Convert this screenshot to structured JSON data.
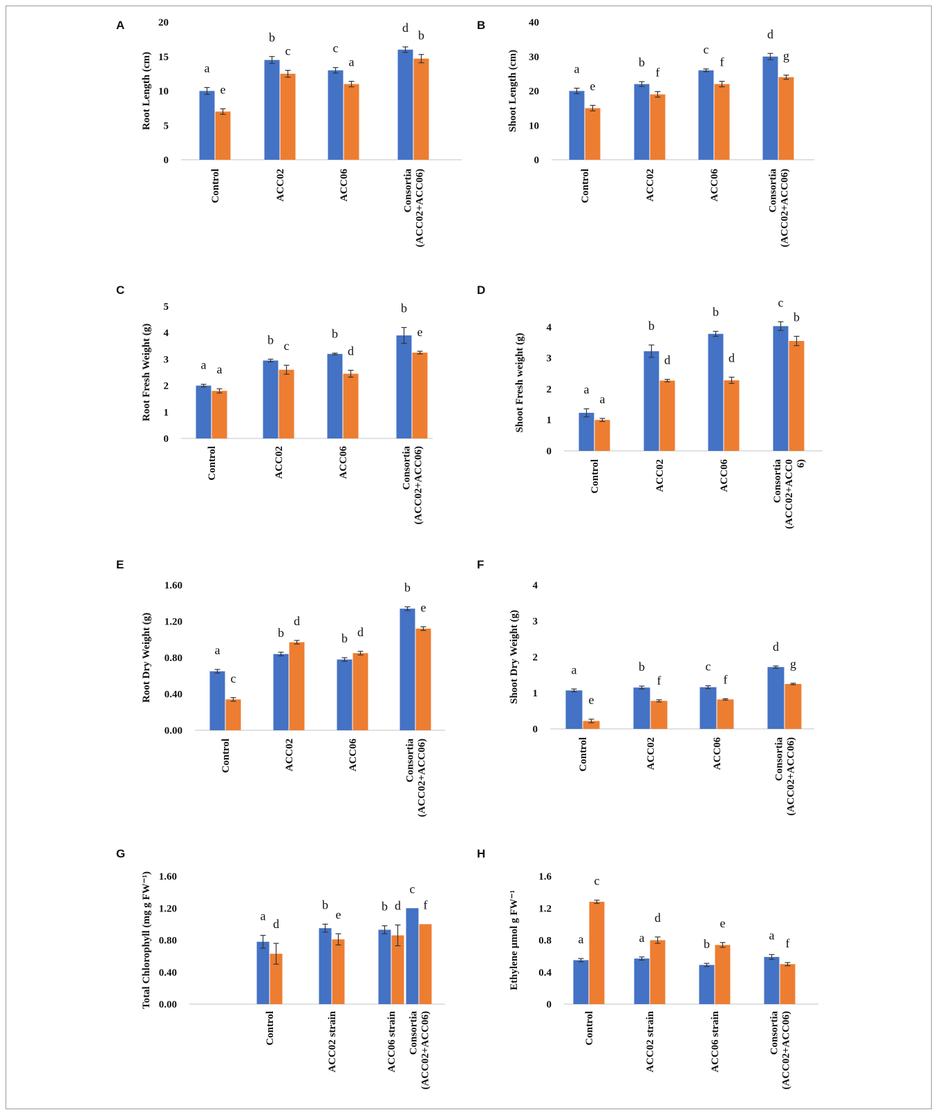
{
  "colors": {
    "series1": "#4472C4",
    "series2": "#ED7D31",
    "axis": "#cfcfcf"
  },
  "chart_data": [
    {
      "panel": "A",
      "type": "bar",
      "categories": [
        "Control",
        "ACC02",
        "ACC06",
        "Consortia\n(ACC02+ACC06)"
      ],
      "ylabel": "Root Length (cm)",
      "ylim": [
        0,
        20
      ],
      "yticks": [
        "0",
        "5",
        "10",
        "15",
        "20"
      ],
      "series": [
        {
          "values": [
            10,
            14.5,
            13,
            16
          ],
          "errors": [
            0.5,
            0.5,
            0.4,
            0.4
          ],
          "letters": [
            "a",
            "b",
            "c",
            "d"
          ]
        },
        {
          "values": [
            7,
            12.5,
            11,
            14.7
          ],
          "errors": [
            0.4,
            0.5,
            0.4,
            0.6
          ],
          "letters": [
            "e",
            "c",
            "a",
            "b"
          ]
        }
      ]
    },
    {
      "panel": "B",
      "type": "bar",
      "categories": [
        "Control",
        "ACC02",
        "ACC06",
        "Consortia\n(ACC02+ACC06)"
      ],
      "ylabel": "Shoot Length (cm)",
      "ylim": [
        0,
        40
      ],
      "yticks": [
        "0",
        "10",
        "20",
        "30",
        "40"
      ],
      "series": [
        {
          "values": [
            20,
            22,
            26,
            30
          ],
          "errors": [
            0.8,
            0.7,
            0.4,
            0.9
          ],
          "letters": [
            "a",
            "b",
            "c",
            "d"
          ]
        },
        {
          "values": [
            15,
            19,
            22,
            24
          ],
          "errors": [
            0.8,
            0.8,
            0.8,
            0.6
          ],
          "letters": [
            "e",
            "f",
            "f",
            "g"
          ]
        }
      ]
    },
    {
      "panel": "C",
      "type": "bar",
      "categories": [
        "Control",
        "ACC02",
        "ACC06",
        "Consortia\n(ACC02+ACC06)"
      ],
      "ylabel": "Root  Fresh Weight (g)",
      "ylim": [
        0,
        5
      ],
      "yticks": [
        "0",
        "1",
        "2",
        "3",
        "4",
        "5"
      ],
      "series": [
        {
          "values": [
            2.0,
            2.95,
            3.2,
            3.9
          ],
          "errors": [
            0.05,
            0.05,
            0.03,
            0.3
          ],
          "letters": [
            "a",
            "b",
            "b",
            "b"
          ]
        },
        {
          "values": [
            1.8,
            2.6,
            2.45,
            3.25
          ],
          "errors": [
            0.08,
            0.17,
            0.13,
            0.05
          ],
          "letters": [
            "a",
            "c",
            "d",
            "e"
          ]
        }
      ]
    },
    {
      "panel": "D",
      "type": "bar",
      "categories": [
        "Control",
        "ACC02",
        "ACC06",
        "Consortia\n(ACC02+ACC0\n6)"
      ],
      "ylabel": "Shoot Fresh weight (g)",
      "ylim": [
        0,
        4
      ],
      "ymax": 4.4,
      "yticks": [
        "0",
        "1",
        "2",
        "3",
        "4"
      ],
      "series": [
        {
          "values": [
            1.23,
            3.22,
            3.78,
            4.03
          ],
          "errors": [
            0.13,
            0.2,
            0.08,
            0.14
          ],
          "letters": [
            "a",
            "b",
            "b",
            "c"
          ]
        },
        {
          "values": [
            1.0,
            2.27,
            2.28,
            3.55
          ],
          "errors": [
            0.05,
            0.04,
            0.1,
            0.15
          ],
          "letters": [
            "a",
            "d",
            "d",
            "b"
          ]
        }
      ]
    },
    {
      "panel": "E",
      "type": "bar",
      "categories": [
        "Control",
        "ACC02",
        "ACC06",
        "Consortia\n(ACC02+ACC06)"
      ],
      "ylabel": "Root Dry Weight (g)",
      "ylim": [
        0,
        1.6
      ],
      "yticks": [
        "0.00",
        "0.40",
        "0.80",
        "1.20",
        "1.60"
      ],
      "series": [
        {
          "values": [
            0.65,
            0.84,
            0.78,
            1.34
          ],
          "errors": [
            0.02,
            0.02,
            0.02,
            0.02
          ],
          "letters": [
            "a",
            "b",
            "b",
            "b"
          ]
        },
        {
          "values": [
            0.34,
            0.97,
            0.85,
            1.12
          ],
          "errors": [
            0.02,
            0.02,
            0.02,
            0.02
          ],
          "letters": [
            "c",
            "d",
            "d",
            "e"
          ]
        }
      ]
    },
    {
      "panel": "F",
      "type": "bar",
      "categories": [
        "Control",
        "ACC02",
        "ACC06",
        "Consortia\n(ACC02+ACC06)"
      ],
      "ylabel": "Shoot Dry Weight (g)",
      "ylim": [
        0,
        4
      ],
      "yticks": [
        "0",
        "1",
        "2",
        "3",
        "4"
      ],
      "series": [
        {
          "values": [
            1.07,
            1.15,
            1.16,
            1.72
          ],
          "errors": [
            0.04,
            0.04,
            0.04,
            0.03
          ],
          "letters": [
            "a",
            "b",
            "c",
            "d"
          ]
        },
        {
          "values": [
            0.22,
            0.78,
            0.82,
            1.25
          ],
          "errors": [
            0.05,
            0.03,
            0.02,
            0.02
          ],
          "letters": [
            "e",
            "f",
            "f",
            "g"
          ]
        }
      ]
    },
    {
      "panel": "G",
      "type": "bar",
      "categories": [
        "",
        "Control",
        "ACC02 strain",
        "ACC06 strain",
        "Consortia\n(ACC02+ACC06)"
      ],
      "ylabel": "Total Chlorophyll (mg g FW⁻¹)",
      "ylim": [
        0,
        1.6
      ],
      "yticks": [
        "0.00",
        "0.40",
        "0.80",
        "1.20",
        "1.60"
      ],
      "series": [
        {
          "values": [
            null,
            0.78,
            0.95,
            0.93,
            1.2
          ],
          "errors": [
            null,
            0.08,
            0.05,
            0.05,
            0
          ],
          "letters": [
            "",
            "a",
            "b",
            "b",
            "c"
          ]
        },
        {
          "values": [
            null,
            0.63,
            0.81,
            0.86,
            1.0
          ],
          "errors": [
            null,
            0.13,
            0.07,
            0.13,
            0
          ],
          "letters": [
            "",
            "d",
            "e",
            "d",
            "f"
          ]
        }
      ]
    },
    {
      "panel": "H",
      "type": "bar",
      "categories": [
        "Control",
        "ACC02 strain",
        "ACC06 strain",
        "Consortia\n(ACC02+ACC06)"
      ],
      "ylabel": "Ethylene μmol g FW⁻¹",
      "ylim": [
        0,
        1.6
      ],
      "yticks": [
        "0",
        "0.4",
        "0.8",
        "1.2",
        "1.6"
      ],
      "series": [
        {
          "values": [
            0.55,
            0.57,
            0.49,
            0.59
          ],
          "errors": [
            0.02,
            0.02,
            0.02,
            0.03
          ],
          "letters": [
            "a",
            "a",
            "b",
            "a"
          ]
        },
        {
          "values": [
            1.28,
            0.8,
            0.74,
            0.5
          ],
          "errors": [
            0.02,
            0.04,
            0.03,
            0.02
          ],
          "letters": [
            "c",
            "d",
            "e",
            "f"
          ]
        }
      ]
    }
  ]
}
